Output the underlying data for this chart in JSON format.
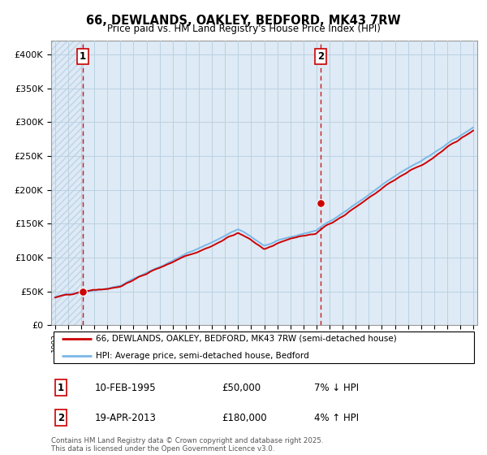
{
  "title": "66, DEWLANDS, OAKLEY, BEDFORD, MK43 7RW",
  "subtitle": "Price paid vs. HM Land Registry's House Price Index (HPI)",
  "ylabel_ticks": [
    "£0",
    "£50K",
    "£100K",
    "£150K",
    "£200K",
    "£250K",
    "£300K",
    "£350K",
    "£400K"
  ],
  "ytick_values": [
    0,
    50000,
    100000,
    150000,
    200000,
    250000,
    300000,
    350000,
    400000
  ],
  "ylim": [
    0,
    420000
  ],
  "xlim_start": 1992.7,
  "xlim_end": 2025.3,
  "purchase1": {
    "date_x": 1995.11,
    "price": 50000,
    "label": "1"
  },
  "purchase2": {
    "date_x": 2013.3,
    "price": 180000,
    "label": "2"
  },
  "hpi_line_color": "#7ab8e8",
  "price_line_color": "#cc0000",
  "dashed_line_color": "#cc0000",
  "bg_color": "#deeaf5",
  "hatch_color": "#c0d4e8",
  "legend_label1": "66, DEWLANDS, OAKLEY, BEDFORD, MK43 7RW (semi-detached house)",
  "legend_label2": "HPI: Average price, semi-detached house, Bedford",
  "table_rows": [
    {
      "num": "1",
      "date": "10-FEB-1995",
      "price": "£50,000",
      "hpi": "7% ↓ HPI"
    },
    {
      "num": "2",
      "date": "19-APR-2013",
      "price": "£180,000",
      "hpi": "4% ↑ HPI"
    }
  ],
  "footer": "Contains HM Land Registry data © Crown copyright and database right 2025.\nThis data is licensed under the Open Government Licence v3.0.",
  "grid_color": "#b8cfe0",
  "marker_size": 7
}
